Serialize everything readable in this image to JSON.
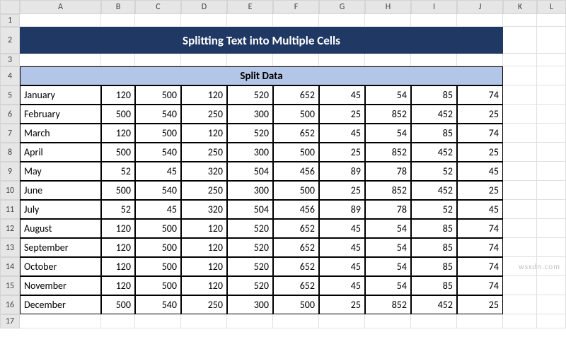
{
  "columns": [
    "A",
    "B",
    "C",
    "D",
    "E",
    "F",
    "G",
    "H",
    "I",
    "J",
    "K",
    "L"
  ],
  "rows": [
    "1",
    "2",
    "3",
    "4",
    "5",
    "6",
    "7",
    "8",
    "9",
    "10",
    "11",
    "12",
    "13",
    "14",
    "15",
    "16",
    "17"
  ],
  "title": "Splitting Text into Multiple Cells",
  "subheader": "Split Data",
  "watermark": "wsxdn.com",
  "data": [
    {
      "label": "January",
      "vals": [
        120,
        500,
        120,
        520,
        652,
        45,
        54,
        85,
        74
      ]
    },
    {
      "label": "February",
      "vals": [
        500,
        540,
        250,
        300,
        500,
        25,
        852,
        452,
        25
      ]
    },
    {
      "label": "March",
      "vals": [
        120,
        500,
        120,
        520,
        652,
        45,
        54,
        85,
        74
      ]
    },
    {
      "label": "April",
      "vals": [
        500,
        540,
        250,
        300,
        500,
        25,
        852,
        452,
        25
      ]
    },
    {
      "label": "May",
      "vals": [
        52,
        45,
        320,
        504,
        456,
        89,
        78,
        52,
        45
      ]
    },
    {
      "label": "June",
      "vals": [
        500,
        540,
        250,
        300,
        500,
        25,
        852,
        452,
        25
      ]
    },
    {
      "label": "July",
      "vals": [
        52,
        45,
        320,
        504,
        456,
        89,
        78,
        52,
        45
      ]
    },
    {
      "label": "August",
      "vals": [
        120,
        500,
        120,
        520,
        652,
        45,
        54,
        85,
        74
      ]
    },
    {
      "label": "September",
      "vals": [
        120,
        500,
        120,
        520,
        652,
        45,
        54,
        85,
        74
      ]
    },
    {
      "label": "October",
      "vals": [
        120,
        500,
        120,
        520,
        652,
        45,
        54,
        85,
        74
      ]
    },
    {
      "label": "November",
      "vals": [
        120,
        500,
        120,
        520,
        652,
        45,
        54,
        85,
        74
      ]
    },
    {
      "label": "December",
      "vals": [
        500,
        540,
        250,
        300,
        500,
        25,
        852,
        452,
        25
      ]
    }
  ],
  "colors": {
    "title_bg": "#1f3864",
    "title_fg": "#ffffff",
    "subheader_bg": "#b4c6e7",
    "border": "#000000",
    "header_bg": "#e6e6e6"
  }
}
